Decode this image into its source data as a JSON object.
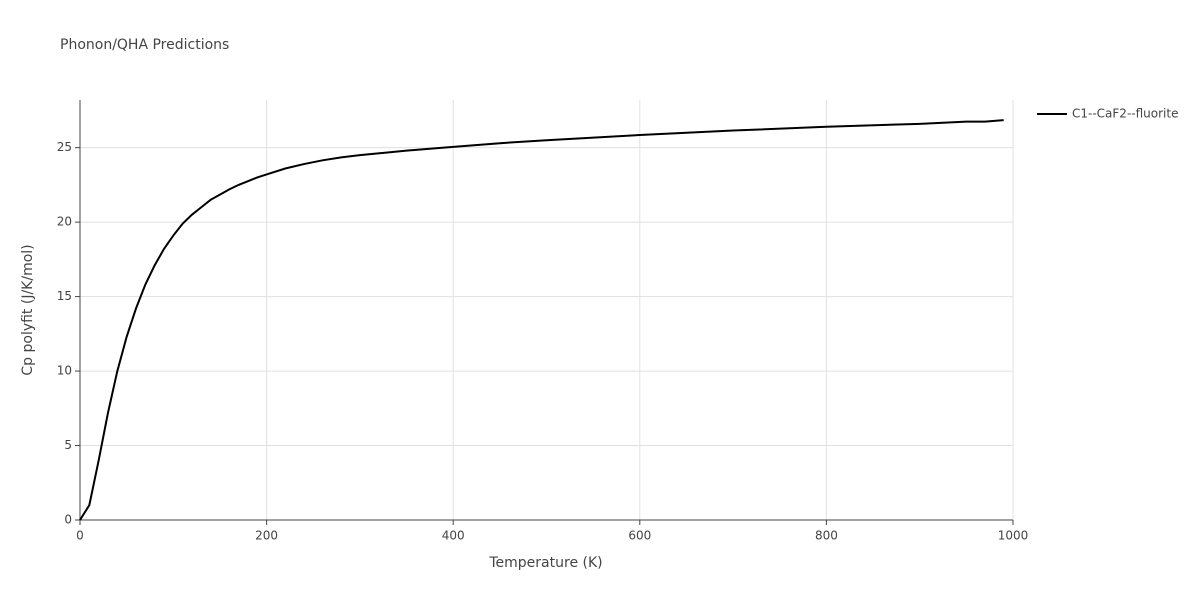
{
  "chart_data": {
    "type": "line",
    "title": "Phonon/QHA Predictions",
    "x_label": "Temperature (K)",
    "y_label": "Cp polyfit (J/K/mol)",
    "x": [
      0,
      10,
      20,
      30,
      40,
      50,
      60,
      70,
      80,
      90,
      100,
      110,
      120,
      130,
      140,
      150,
      160,
      170,
      180,
      190,
      200,
      220,
      240,
      260,
      280,
      300,
      350,
      400,
      450,
      500,
      600,
      700,
      800,
      900,
      950,
      970,
      990
    ],
    "series": [
      {
        "name": "C1--CaF2--fluorite",
        "color": "#000000",
        "values": [
          0,
          1.0,
          4.0,
          7.2,
          10.0,
          12.3,
          14.2,
          15.8,
          17.1,
          18.2,
          19.1,
          19.9,
          20.5,
          21.0,
          21.5,
          21.85,
          22.2,
          22.5,
          22.75,
          23.0,
          23.2,
          23.6,
          23.9,
          24.15,
          24.35,
          24.5,
          24.8,
          25.05,
          25.3,
          25.5,
          25.85,
          26.15,
          26.4,
          26.6,
          26.75,
          26.75,
          26.85
        ]
      }
    ],
    "xlim": [
      0,
      1000
    ],
    "xticks": [
      0,
      200,
      400,
      600,
      800,
      1000
    ],
    "ylim": [
      0,
      28.2
    ],
    "yticks": [
      0,
      5,
      10,
      15,
      20,
      25
    ],
    "grid": true,
    "legend": "right"
  }
}
